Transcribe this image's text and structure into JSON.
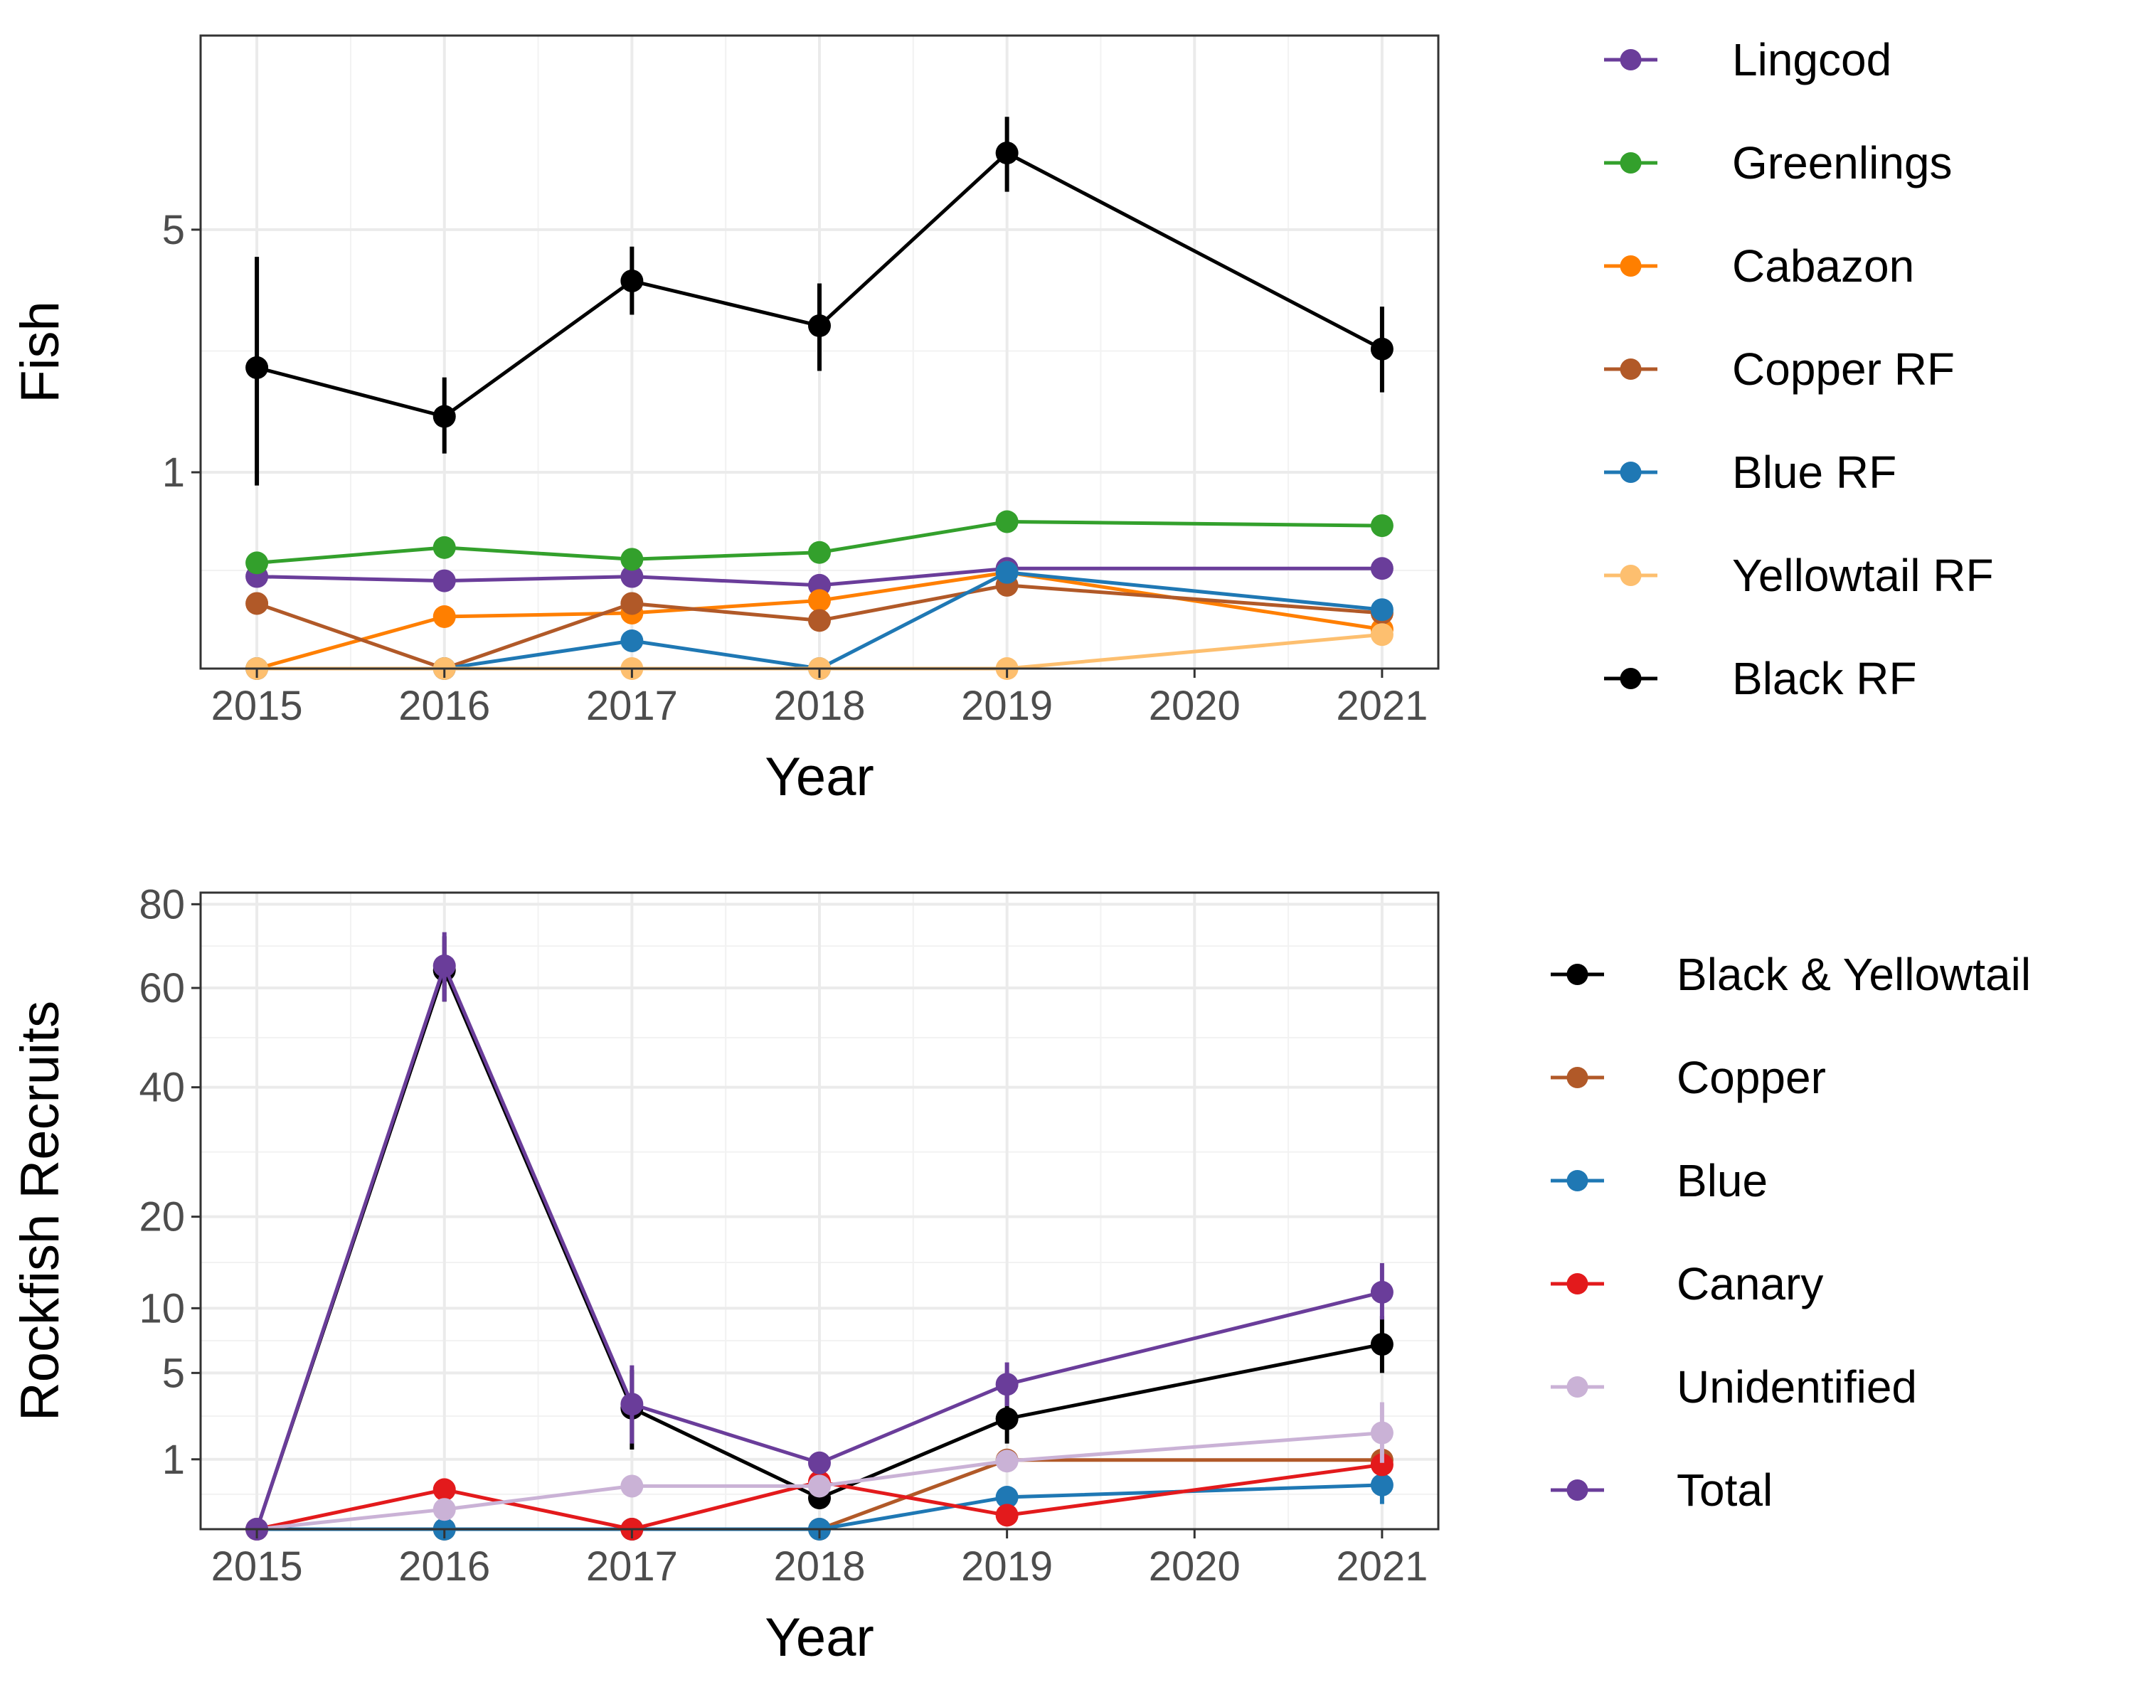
{
  "chart_data": [
    {
      "type": "line",
      "xlabel": "Year",
      "ylabel": "Fish",
      "y_scale": "sqrt",
      "x_ticks": [
        2015,
        2016,
        2017,
        2018,
        2019,
        2020,
        2021
      ],
      "y_ticks": [
        1,
        5
      ],
      "ylim": [
        0,
        10.4
      ],
      "grid": true,
      "legend_position": "right",
      "series": [
        {
          "name": "Lingcod",
          "color": "#6a3d9a",
          "points": [
            {
              "x": 2015,
              "y": 0.22
            },
            {
              "x": 2016,
              "y": 0.2
            },
            {
              "x": 2017,
              "y": 0.22
            },
            {
              "x": 2018,
              "y": 0.18
            },
            {
              "x": 2019,
              "y": 0.26
            },
            {
              "x": 2021,
              "y": 0.26
            }
          ]
        },
        {
          "name": "Greenlings",
          "color": "#33a02c",
          "points": [
            {
              "x": 2015,
              "y": 0.29
            },
            {
              "x": 2016,
              "y": 0.38
            },
            {
              "x": 2017,
              "y": 0.31
            },
            {
              "x": 2018,
              "y": 0.35
            },
            {
              "x": 2019,
              "y": 0.56
            },
            {
              "x": 2021,
              "y": 0.53
            }
          ]
        },
        {
          "name": "Cabazon",
          "color": "#ff7f00",
          "points": [
            {
              "x": 2015,
              "y": 0.0
            },
            {
              "x": 2016,
              "y": 0.07
            },
            {
              "x": 2017,
              "y": 0.08
            },
            {
              "x": 2018,
              "y": 0.12
            },
            {
              "x": 2019,
              "y": 0.24
            },
            {
              "x": 2021,
              "y": 0.04
            }
          ]
        },
        {
          "name": "Copper RF",
          "color": "#b15928",
          "points": [
            {
              "x": 2015,
              "y": 0.11
            },
            {
              "x": 2016,
              "y": 0.0
            },
            {
              "x": 2017,
              "y": 0.11
            },
            {
              "x": 2018,
              "y": 0.06
            },
            {
              "x": 2019,
              "y": 0.18
            },
            {
              "x": 2021,
              "y": 0.08
            }
          ]
        },
        {
          "name": "Blue RF",
          "color": "#1f78b4",
          "points": [
            {
              "x": 2015,
              "y": 0.0
            },
            {
              "x": 2016,
              "y": 0.0
            },
            {
              "x": 2017,
              "y": 0.02
            },
            {
              "x": 2018,
              "y": 0.0
            },
            {
              "x": 2019,
              "y": 0.24
            },
            {
              "x": 2021,
              "y": 0.09
            }
          ]
        },
        {
          "name": "Yellowtail RF",
          "color": "#fdbf6f",
          "points": [
            {
              "x": 2015,
              "y": 0.0
            },
            {
              "x": 2016,
              "y": 0.0
            },
            {
              "x": 2017,
              "y": 0.0
            },
            {
              "x": 2018,
              "y": 0.0
            },
            {
              "x": 2019,
              "y": 0.0
            },
            {
              "x": 2021,
              "y": 0.03
            }
          ]
        },
        {
          "name": "Black RF",
          "color": "#000000",
          "points": [
            {
              "x": 2015,
              "y": 2.35,
              "lo": 0.87,
              "hi": 4.4
            },
            {
              "x": 2016,
              "y": 1.65,
              "lo": 1.2,
              "hi": 2.2
            },
            {
              "x": 2017,
              "y": 3.9,
              "lo": 3.25,
              "hi": 4.62
            },
            {
              "x": 2018,
              "y": 3.05,
              "lo": 2.3,
              "hi": 3.85
            },
            {
              "x": 2019,
              "y": 6.9,
              "lo": 5.9,
              "hi": 7.9
            },
            {
              "x": 2021,
              "y": 2.65,
              "lo": 1.98,
              "hi": 3.4
            }
          ]
        }
      ]
    },
    {
      "type": "line",
      "xlabel": "Year",
      "ylabel": "Rockfish Recruits",
      "y_scale": "sqrt",
      "x_ticks": [
        2015,
        2016,
        2017,
        2018,
        2019,
        2020,
        2021
      ],
      "y_ticks": [
        1,
        5,
        10,
        20,
        40,
        60,
        80
      ],
      "ylim": [
        0,
        83
      ],
      "grid": true,
      "legend_position": "right",
      "series": [
        {
          "name": "Black & Yellowtail",
          "color": "#000000",
          "points": [
            {
              "x": 2015,
              "y": 0.0
            },
            {
              "x": 2016,
              "y": 64,
              "lo": 57,
              "hi": 72
            },
            {
              "x": 2017,
              "y": 3.0,
              "lo": 1.3,
              "hi": 5.2
            },
            {
              "x": 2018,
              "y": 0.2
            },
            {
              "x": 2019,
              "y": 2.5,
              "lo": 1.5,
              "hi": 3.7
            },
            {
              "x": 2021,
              "y": 7.0,
              "lo": 5.0,
              "hi": 9.3
            }
          ]
        },
        {
          "name": "Copper",
          "color": "#b15928",
          "points": [
            {
              "x": 2015,
              "y": 0.0
            },
            {
              "x": 2016,
              "y": 0.0
            },
            {
              "x": 2017,
              "y": 0.0
            },
            {
              "x": 2018,
              "y": 0.0
            },
            {
              "x": 2019,
              "y": 0.98
            },
            {
              "x": 2021,
              "y": 0.98
            }
          ]
        },
        {
          "name": "Blue",
          "color": "#1f78b4",
          "points": [
            {
              "x": 2015,
              "y": 0.0
            },
            {
              "x": 2016,
              "y": 0.0
            },
            {
              "x": 2017,
              "y": 0.0
            },
            {
              "x": 2018,
              "y": 0.0
            },
            {
              "x": 2019,
              "y": 0.21
            },
            {
              "x": 2021,
              "y": 0.4,
              "lo": 0.13,
              "hi": 0.75
            }
          ]
        },
        {
          "name": "Canary",
          "color": "#e31a1c",
          "points": [
            {
              "x": 2015,
              "y": 0.0
            },
            {
              "x": 2016,
              "y": 0.32
            },
            {
              "x": 2017,
              "y": 0.0
            },
            {
              "x": 2018,
              "y": 0.46
            },
            {
              "x": 2019,
              "y": 0.04
            },
            {
              "x": 2021,
              "y": 0.85
            }
          ]
        },
        {
          "name": "Unidentified",
          "color": "#cab2d6",
          "points": [
            {
              "x": 2015,
              "y": 0.0
            },
            {
              "x": 2016,
              "y": 0.08
            },
            {
              "x": 2017,
              "y": 0.38
            },
            {
              "x": 2018,
              "y": 0.38
            },
            {
              "x": 2019,
              "y": 0.95
            },
            {
              "x": 2021,
              "y": 1.9,
              "lo": 0.9,
              "hi": 3.3
            }
          ]
        },
        {
          "name": "Total",
          "color": "#6a3d9a",
          "points": [
            {
              "x": 2015,
              "y": 0.0
            },
            {
              "x": 2016,
              "y": 65,
              "lo": 57,
              "hi": 73
            },
            {
              "x": 2017,
              "y": 3.2,
              "lo": 1.5,
              "hi": 5.5
            },
            {
              "x": 2018,
              "y": 0.9
            },
            {
              "x": 2019,
              "y": 4.3,
              "lo": 3.1,
              "hi": 5.7
            },
            {
              "x": 2021,
              "y": 11.5,
              "lo": 9.0,
              "hi": 14.5
            }
          ]
        }
      ]
    }
  ]
}
